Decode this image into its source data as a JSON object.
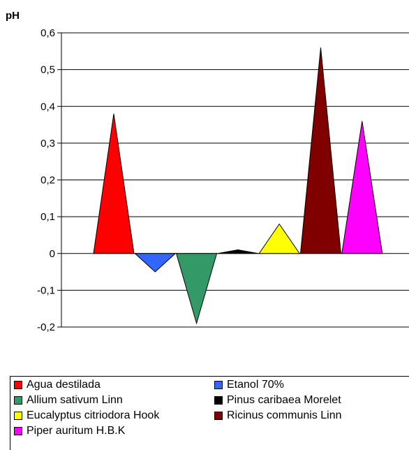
{
  "chart_data": {
    "type": "area",
    "ylabel": "pH",
    "ylim": [
      -0.2,
      0.6
    ],
    "yticks": [
      "0,6",
      "0,5",
      "0,4",
      "0,3",
      "0,2",
      "0,1",
      "0",
      "-0,1",
      "-0,2"
    ],
    "grid": true,
    "legend_position": "bottom",
    "series": [
      {
        "name": "Agua destilada",
        "value": 0.38,
        "color": "#ff0000"
      },
      {
        "name": "Etanol 70%",
        "value": -0.05,
        "color": "#3366ff"
      },
      {
        "name": "Allium sativum Linn",
        "value": -0.19,
        "color": "#339966"
      },
      {
        "name": "Pinus caribaea Morelet",
        "value": 0.01,
        "color": "#000000"
      },
      {
        "name": "Eucalyptus citriodora Hook",
        "value": 0.08,
        "color": "#ffff00"
      },
      {
        "name": "Ricinus communis Linn",
        "value": 0.56,
        "color": "#800000"
      },
      {
        "name": "Piper auritum H.B.K",
        "value": 0.36,
        "color": "#ff00ff"
      }
    ]
  }
}
